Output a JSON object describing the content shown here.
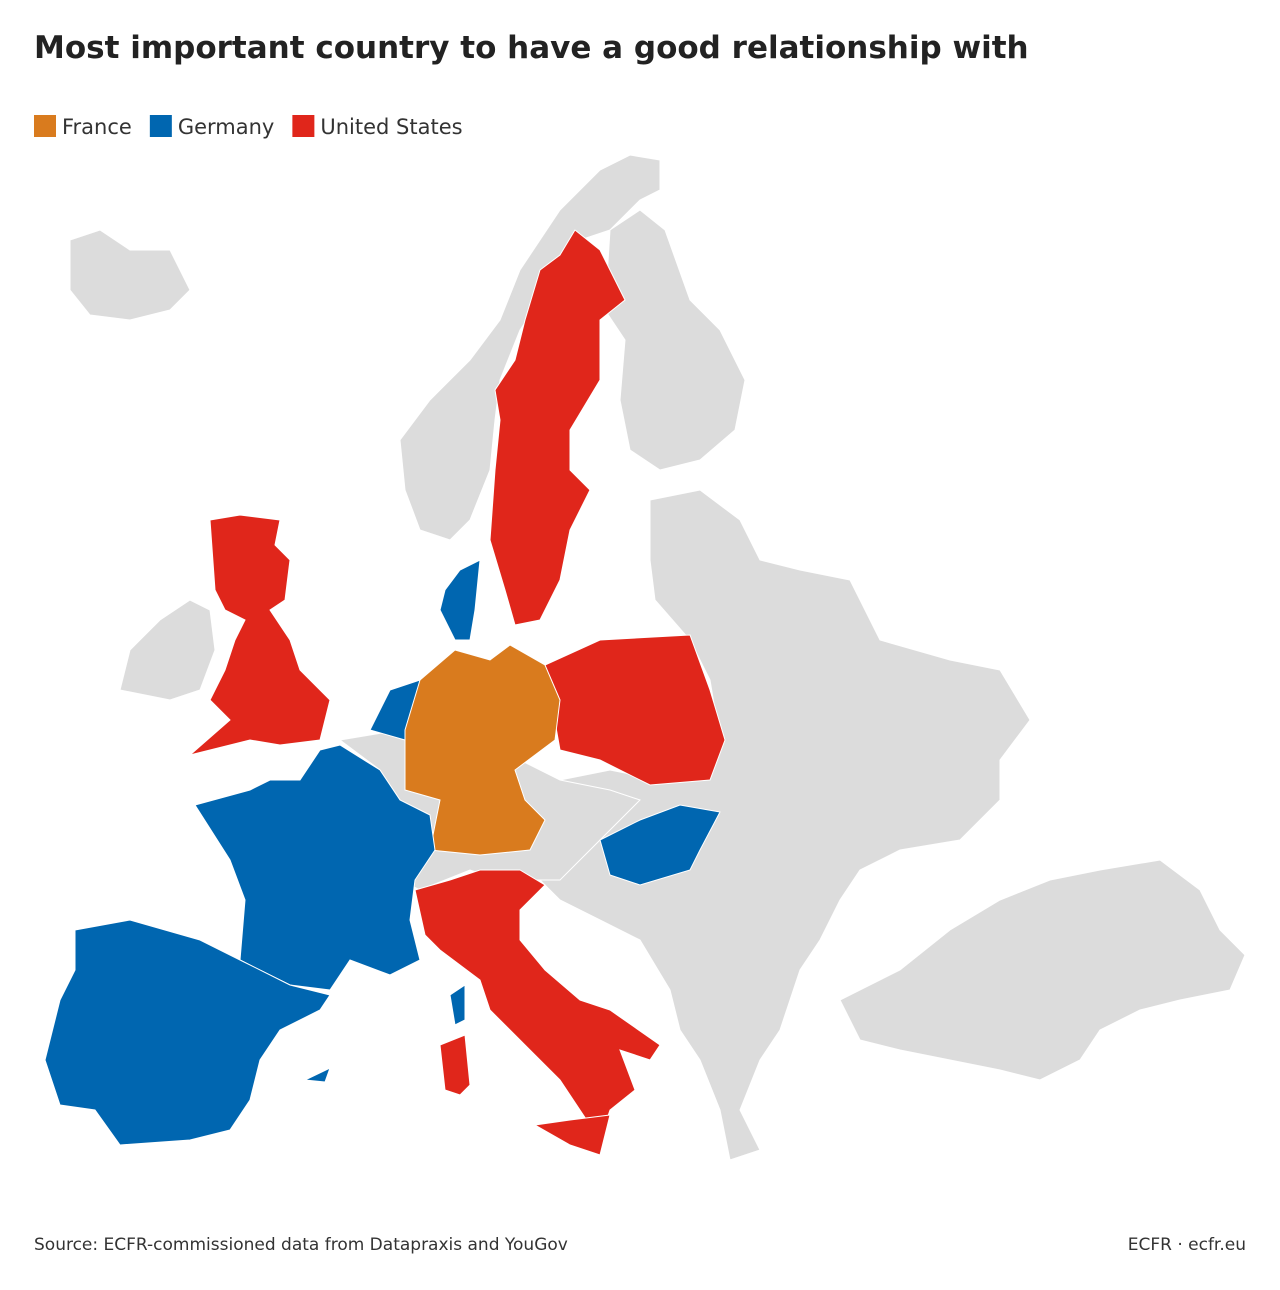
{
  "title": "Most important country to have a good relationship with",
  "legend": [
    {
      "name": "France",
      "color": "#d97b1e"
    },
    {
      "name": "Germany",
      "color": "#0066b0"
    },
    {
      "name": "United States",
      "color": "#e0261b"
    }
  ],
  "source": "Source: ECFR-commissioned data from Datapraxis and YouGov",
  "credit": "ECFR · ecfr.eu"
}
